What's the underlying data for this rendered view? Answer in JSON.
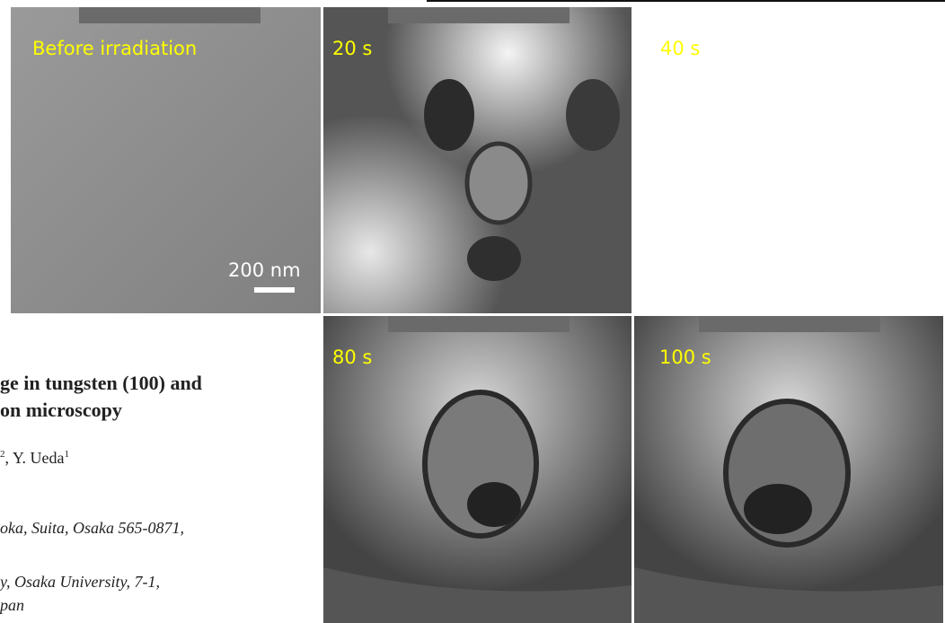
{
  "panels": [
    {
      "label": "Before irradiation"
    },
    {
      "label": "20 s"
    },
    {
      "label": "40 s"
    },
    {
      "label": "80 s"
    },
    {
      "label": "100 s"
    }
  ],
  "scale_bar": {
    "label": "200 nm"
  },
  "paper": {
    "title_lines": [
      "ge in tungsten (100) and",
      "on microscopy"
    ],
    "authors": {
      "sup_a": "2",
      "text": ", Y. Ueda",
      "sup_b": "1"
    },
    "affiliation_lines": [
      "oka, Suita, Osaka 565-0871,",
      "y, Osaka University, 7-1,",
      "pan"
    ]
  }
}
